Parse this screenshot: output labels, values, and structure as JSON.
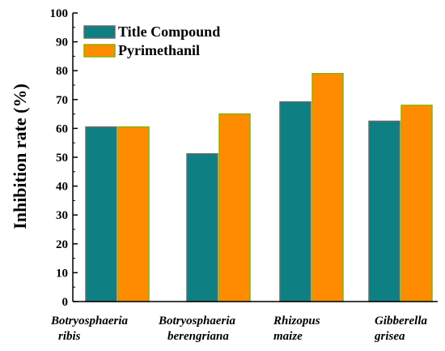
{
  "chart_data": {
    "type": "bar",
    "categories": [
      [
        "Botryosphaeria",
        "ribis"
      ],
      [
        "Botryosphaeria",
        "berengriana"
      ],
      [
        "Rhizopus",
        "maize"
      ],
      [
        "Gibberella",
        "grisea"
      ]
    ],
    "series": [
      {
        "name": "Title Compound",
        "values": [
          60.5,
          51.2,
          69.2,
          62.5
        ],
        "color": "#0e7f82",
        "edge": "#6b6b6b"
      },
      {
        "name": "Pyrimethanil",
        "values": [
          60.5,
          65.0,
          79.0,
          68.0
        ],
        "color": "#ff8c00",
        "edge": "#8fae00"
      }
    ],
    "ylabel": "Inhibition rate (%)",
    "ylim": [
      0,
      100
    ],
    "yticks": [
      0,
      10,
      20,
      30,
      40,
      50,
      60,
      70,
      80,
      90,
      100
    ],
    "legend_position": "top-left",
    "grid": false
  }
}
